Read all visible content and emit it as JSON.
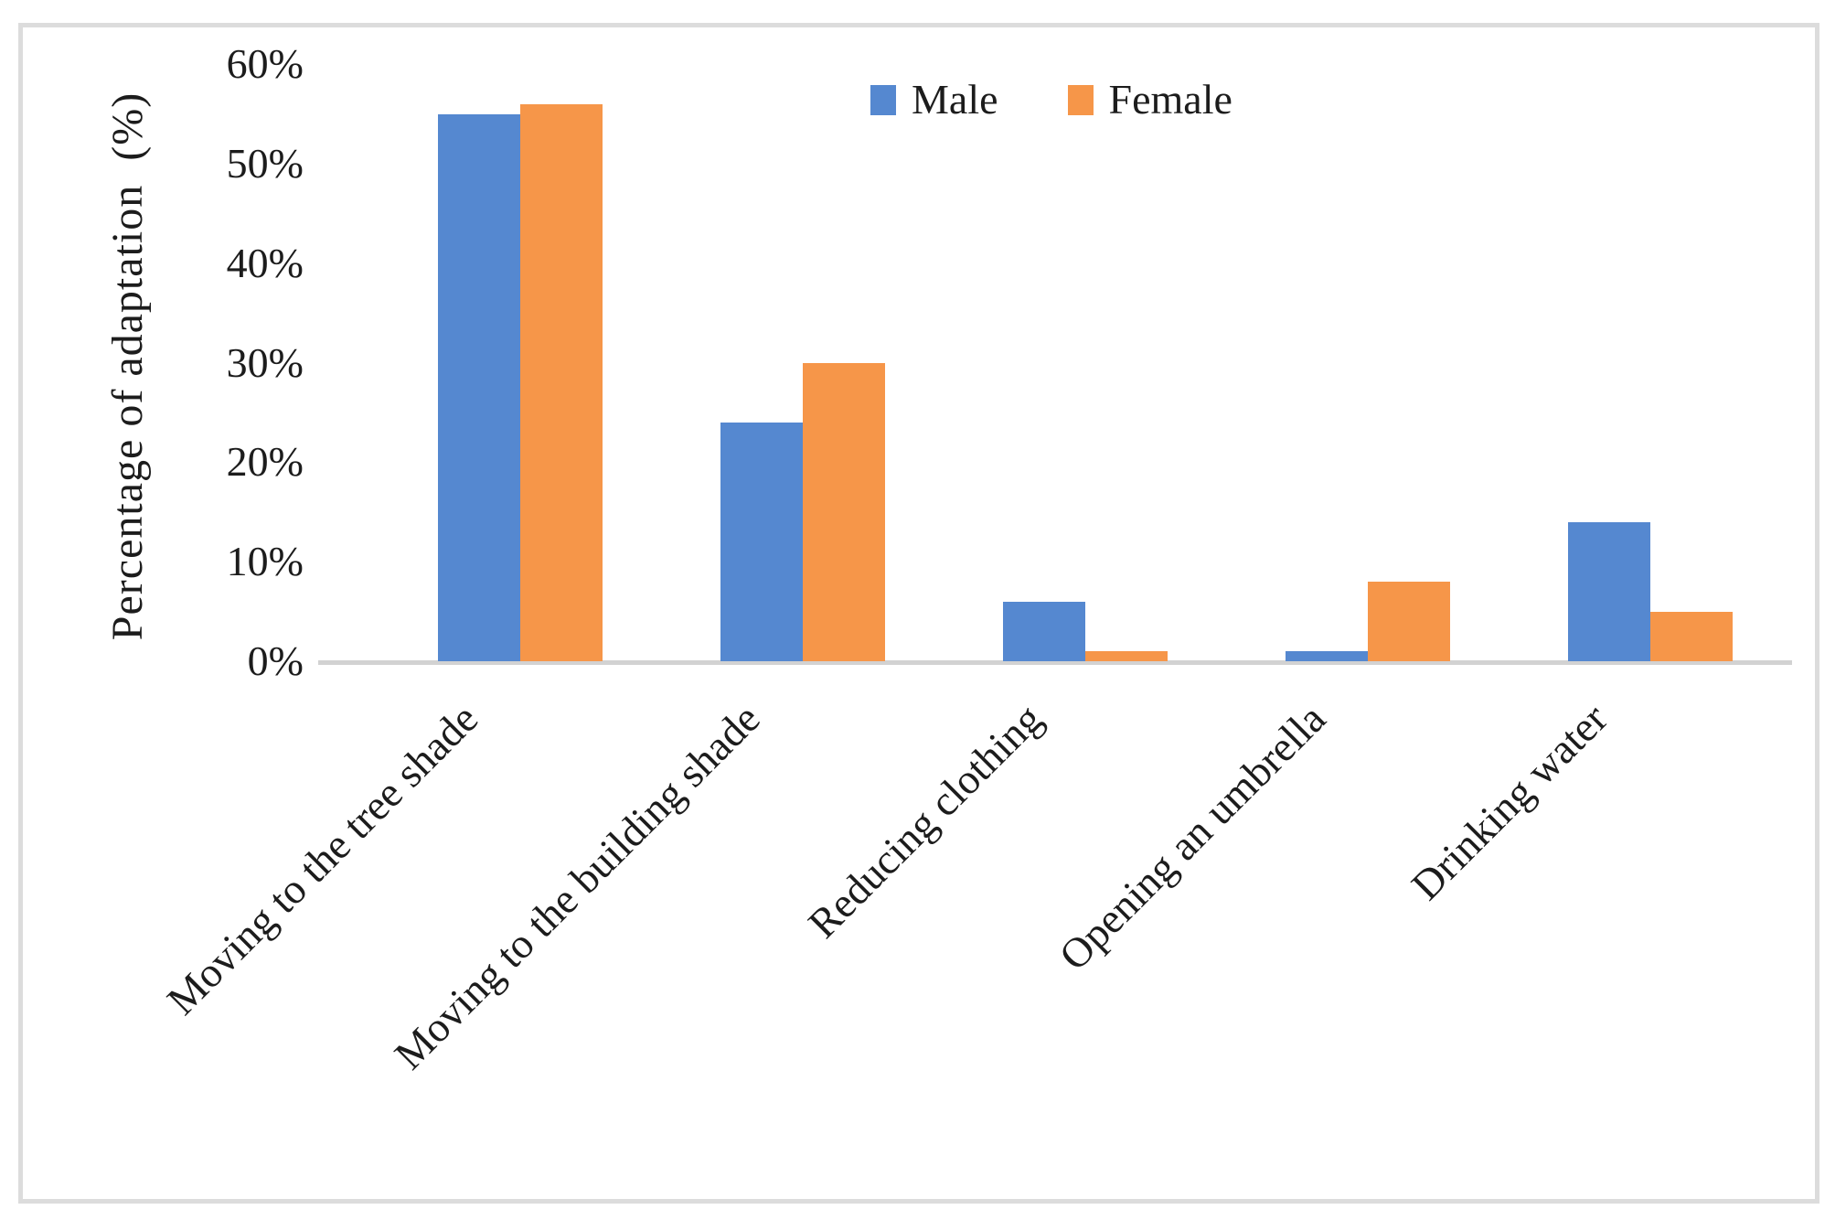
{
  "figure": {
    "background_color": "#FFFFFF",
    "frame_border_color": "#DCDCDC",
    "text_color": "#1C1C1C"
  },
  "chart_data": {
    "type": "bar",
    "title": "",
    "categories": [
      "Moving to the tree shade",
      "Moving to the building shade",
      "Reducing clothing",
      "Opening an umbrella",
      "Drinking water"
    ],
    "series": [
      {
        "name": "Male",
        "color": "#5588D0",
        "values": [
          55,
          24,
          6,
          1,
          14
        ]
      },
      {
        "name": "Female",
        "color": "#F69649",
        "values": [
          56,
          30,
          1,
          8,
          5
        ]
      }
    ],
    "xlabel": "",
    "ylabel": "Percentage of adaptation  (%)",
    "y_ticks": [
      "60%",
      "50%",
      "40%",
      "30%",
      "20%",
      "10%",
      "0%"
    ],
    "ylim": [
      0,
      60
    ],
    "grid": false,
    "legend_position": "top-center",
    "axis_line_color": "#D2D2D2",
    "bar_unit": "percent"
  }
}
